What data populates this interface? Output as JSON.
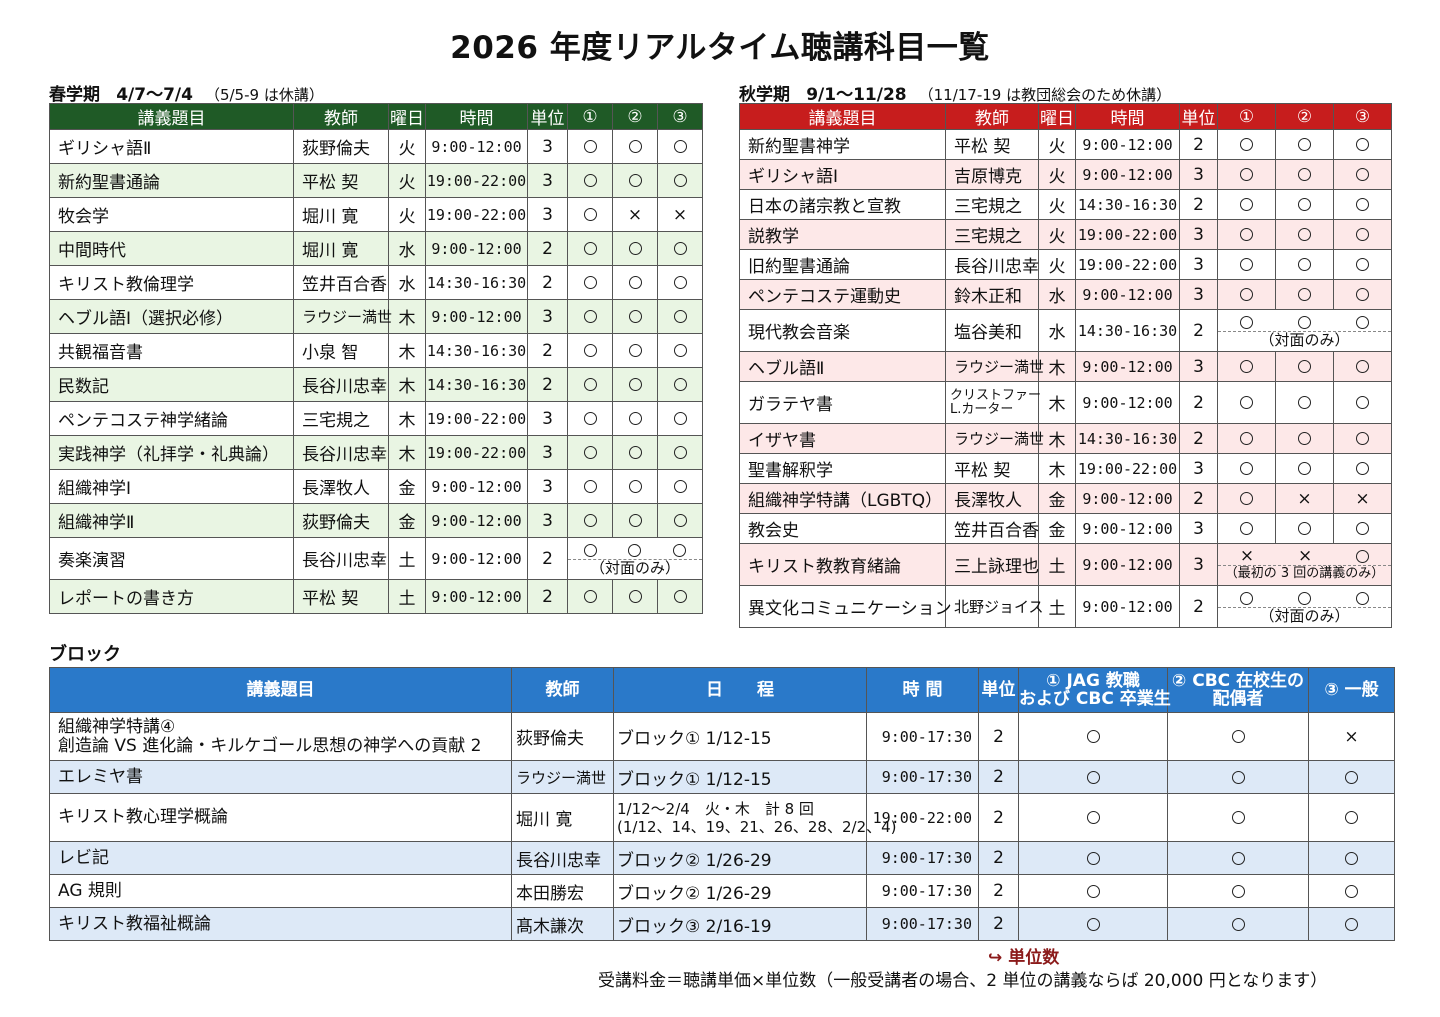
{
  "title": "2026 年度リアルタイム聴講科目一覧",
  "spring": {
    "label": "春学期",
    "dates": "4/7～7/4",
    "note": "（5/5-9 は休講）",
    "headers": [
      "講義題目",
      "教師",
      "曜日",
      "時間",
      "単位",
      "①",
      "②",
      "③"
    ],
    "rows": [
      {
        "subject": "ギリシャ語Ⅱ",
        "teacher": "荻野倫夫",
        "day": "火",
        "time": "9:00-12:00",
        "units": "3",
        "m": [
          "〇",
          "〇",
          "〇"
        ]
      },
      {
        "subject": "新約聖書通論",
        "teacher": "平松 契",
        "day": "火",
        "time": "19:00-22:00",
        "units": "3",
        "m": [
          "〇",
          "〇",
          "〇"
        ]
      },
      {
        "subject": "牧会学",
        "teacher": "堀川 寛",
        "day": "火",
        "time": "19:00-22:00",
        "units": "3",
        "m": [
          "〇",
          "×",
          "×"
        ]
      },
      {
        "subject": "中間時代",
        "teacher": "堀川 寛",
        "day": "水",
        "time": "9:00-12:00",
        "units": "2",
        "m": [
          "〇",
          "〇",
          "〇"
        ]
      },
      {
        "subject": "キリスト教倫理学",
        "teacher": "笠井百合香",
        "day": "水",
        "time": "14:30-16:30",
        "units": "2",
        "m": [
          "〇",
          "〇",
          "〇"
        ]
      },
      {
        "subject": "ヘブル語Ⅰ（選択必修）",
        "teacher": "ラウジー満世",
        "day": "木",
        "time": "9:00-12:00",
        "units": "3",
        "m": [
          "〇",
          "〇",
          "〇"
        ]
      },
      {
        "subject": "共観福音書",
        "teacher": "小泉 智",
        "day": "木",
        "time": "14:30-16:30",
        "units": "2",
        "m": [
          "〇",
          "〇",
          "〇"
        ]
      },
      {
        "subject": "民数記",
        "teacher": "長谷川忠幸",
        "day": "木",
        "time": "14:30-16:30",
        "units": "2",
        "m": [
          "〇",
          "〇",
          "〇"
        ]
      },
      {
        "subject": "ペンテコステ神学緒論",
        "teacher": "三宅規之",
        "day": "木",
        "time": "19:00-22:00",
        "units": "3",
        "m": [
          "〇",
          "〇",
          "〇"
        ]
      },
      {
        "subject": "実践神学（礼拝学・礼典論）",
        "teacher": "長谷川忠幸",
        "day": "木",
        "time": "19:00-22:00",
        "units": "3",
        "m": [
          "〇",
          "〇",
          "〇"
        ]
      },
      {
        "subject": "組織神学Ⅰ",
        "teacher": "長澤牧人",
        "day": "金",
        "time": "9:00-12:00",
        "units": "3",
        "m": [
          "〇",
          "〇",
          "〇"
        ]
      },
      {
        "subject": "組織神学Ⅱ",
        "teacher": "荻野倫夫",
        "day": "金",
        "time": "9:00-12:00",
        "units": "3",
        "m": [
          "〇",
          "〇",
          "〇"
        ]
      },
      {
        "subject": "奏楽演習",
        "teacher": "長谷川忠幸",
        "day": "土",
        "time": "9:00-12:00",
        "units": "2",
        "m": [
          "〇",
          "〇",
          "〇"
        ],
        "note": "（対面のみ）"
      },
      {
        "subject": "レポートの書き方",
        "teacher": "平松 契",
        "day": "土",
        "time": "9:00-12:00",
        "units": "2",
        "m": [
          "〇",
          "〇",
          "〇"
        ]
      }
    ]
  },
  "autumn": {
    "label": "秋学期",
    "dates": "9/1～11/28",
    "note": "（11/17-19 は教団総会のため休講）",
    "headers": [
      "講義題目",
      "教師",
      "曜日",
      "時間",
      "単位",
      "①",
      "②",
      "③"
    ],
    "rows": [
      {
        "subject": "新約聖書神学",
        "teacher": "平松 契",
        "day": "火",
        "time": "9:00-12:00",
        "units": "2",
        "m": [
          "〇",
          "〇",
          "〇"
        ]
      },
      {
        "subject": "ギリシャ語Ⅰ",
        "teacher": "吉原博克",
        "day": "火",
        "time": "9:00-12:00",
        "units": "3",
        "m": [
          "〇",
          "〇",
          "〇"
        ]
      },
      {
        "subject": "日本の諸宗教と宣教",
        "teacher": "三宅規之",
        "day": "火",
        "time": "14:30-16:30",
        "units": "2",
        "m": [
          "〇",
          "〇",
          "〇"
        ]
      },
      {
        "subject": "説教学",
        "teacher": "三宅規之",
        "day": "火",
        "time": "19:00-22:00",
        "units": "3",
        "m": [
          "〇",
          "〇",
          "〇"
        ]
      },
      {
        "subject": "旧約聖書通論",
        "teacher": "長谷川忠幸",
        "day": "火",
        "time": "19:00-22:00",
        "units": "3",
        "m": [
          "〇",
          "〇",
          "〇"
        ]
      },
      {
        "subject": "ペンテコステ運動史",
        "teacher": "鈴木正和",
        "day": "水",
        "time": "9:00-12:00",
        "units": "3",
        "m": [
          "〇",
          "〇",
          "〇"
        ]
      },
      {
        "subject": "現代教会音楽",
        "teacher": "塩谷美和",
        "day": "水",
        "time": "14:30-16:30",
        "units": "2",
        "m": [
          "〇",
          "〇",
          "〇"
        ],
        "note": "（対面のみ）"
      },
      {
        "subject": "ヘブル語Ⅱ",
        "teacher": "ラウジー満世",
        "day": "木",
        "time": "9:00-12:00",
        "units": "3",
        "m": [
          "〇",
          "〇",
          "〇"
        ]
      },
      {
        "subject": "ガラテヤ書",
        "teacher": "クリストファー",
        "teacher2": "L.カーター",
        "day": "木",
        "time": "9:00-12:00",
        "units": "2",
        "m": [
          "〇",
          "〇",
          "〇"
        ]
      },
      {
        "subject": "イザヤ書",
        "teacher": "ラウジー満世",
        "day": "木",
        "time": "14:30-16:30",
        "units": "2",
        "m": [
          "〇",
          "〇",
          "〇"
        ]
      },
      {
        "subject": "聖書解釈学",
        "teacher": "平松 契",
        "day": "木",
        "time": "19:00-22:00",
        "units": "3",
        "m": [
          "〇",
          "〇",
          "〇"
        ]
      },
      {
        "subject": "組織神学特講（LGBTQ）",
        "teacher": "長澤牧人",
        "day": "金",
        "time": "9:00-12:00",
        "units": "2",
        "m": [
          "〇",
          "×",
          "×"
        ]
      },
      {
        "subject": "教会史",
        "teacher": "笠井百合香",
        "day": "金",
        "time": "9:00-12:00",
        "units": "3",
        "m": [
          "〇",
          "〇",
          "〇"
        ]
      },
      {
        "subject": "キリスト教教育緒論",
        "teacher": "三上詠理也",
        "day": "土",
        "time": "9:00-12:00",
        "units": "3",
        "m": [
          "×",
          "×",
          "〇"
        ],
        "note": "（最初の 3 回の講義のみ）"
      },
      {
        "subject": "異文化コミュニケーション",
        "teacher": "北野ジョイス",
        "day": "土",
        "time": "9:00-12:00",
        "units": "2",
        "m": [
          "〇",
          "〇",
          "〇"
        ],
        "note": "（対面のみ）"
      }
    ]
  },
  "block": {
    "label": "ブロック",
    "headers": {
      "subject": "講義題目",
      "teacher": "教師",
      "schedule": "日　　程",
      "time": "時 間",
      "units": "単位",
      "c1_line1": "① JAG 教職",
      "c1_line2": "および CBC 卒業生",
      "c2_line1": "② CBC 在校生の",
      "c2_line2": "配偶者",
      "c3": "③ 一般"
    },
    "rows": [
      {
        "subject": "組織神学特講④",
        "subject2": "創造論 VS 進化論・キルケゴール思想の神学への貢献 2",
        "teacher": "荻野倫夫",
        "schedule": "ブロック① 1/12-15",
        "time": "9:00-17:30",
        "units": "2",
        "m": [
          "〇",
          "〇",
          "×"
        ]
      },
      {
        "subject": "エレミヤ書",
        "teacher": "ラウジー満世",
        "schedule": "ブロック① 1/12-15",
        "time": "9:00-17:30",
        "units": "2",
        "m": [
          "〇",
          "〇",
          "〇"
        ]
      },
      {
        "subject": "キリスト教心理学概論",
        "teacher": "堀川 寛",
        "schedule": "1/12～2/4　火・木　計 8 回",
        "schedule2": "(1/12、14、19、21、26、28、2/2、4)",
        "time": "19:00-22:00",
        "units": "2",
        "m": [
          "〇",
          "〇",
          "〇"
        ]
      },
      {
        "subject": "レビ記",
        "teacher": "長谷川忠幸",
        "schedule": "ブロック② 1/26-29",
        "time": "9:00-17:30",
        "units": "2",
        "m": [
          "〇",
          "〇",
          "〇"
        ]
      },
      {
        "subject": "AG 規則",
        "teacher": "本田勝宏",
        "schedule": "ブロック② 1/26-29",
        "time": "9:00-17:30",
        "units": "2",
        "m": [
          "〇",
          "〇",
          "〇"
        ]
      },
      {
        "subject": "キリスト教福祉概論",
        "teacher": "髙木謙次",
        "schedule": "ブロック③ 2/16-19",
        "time": "9:00-17:30",
        "units": "2",
        "m": [
          "〇",
          "〇",
          "〇"
        ]
      }
    ]
  },
  "unit_note": "単位数",
  "fee_note": "受講料金＝聴講単価×単位数（一般受講者の場合、2 単位の講義ならば 20,000 円となります）",
  "colors": {
    "spring_header": "#1f5a26",
    "autumn_header": "#c71d1d",
    "block_header": "#2a79c9"
  }
}
